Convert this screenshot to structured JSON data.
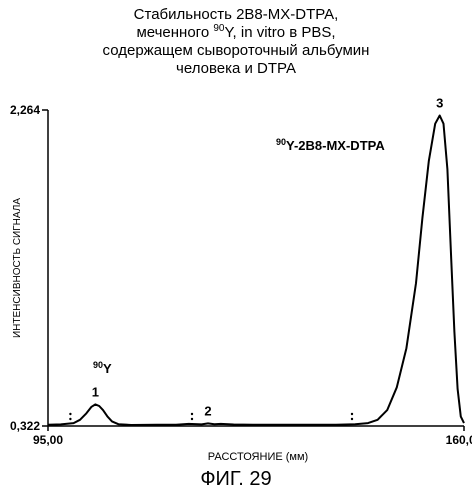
{
  "title": {
    "line1": "Стабильность 2B8-MX-DTPA,",
    "line2_pre": "меченного ",
    "line2_sup": "90",
    "line2_post": "Y, in vitro в PBS,",
    "line3": "содержащем сывороточный альбумин",
    "line4": "человека и DTPA"
  },
  "figure_label": "ФИГ. 29",
  "chart_data": {
    "type": "line",
    "xlabel": "РАССТОЯНИЕ (мм)",
    "ylabel": "ИНТЕНСИВНОСТЬ СИГНАЛА",
    "xlim": [
      95.0,
      160.0
    ],
    "ylim": [
      0.322,
      2.264
    ],
    "x_tick_labels": [
      "95,00",
      "160,00"
    ],
    "y_tick_labels": [
      "0,322",
      "2,264"
    ],
    "x_ticks": [
      95.0,
      160.0
    ],
    "y_ticks": [
      0.322,
      2.264
    ],
    "series": [
      {
        "x": [
          95.0,
          97.0,
          99.0,
          100.0,
          101.0,
          101.8,
          102.4,
          103.0,
          103.6,
          104.3,
          105.0,
          106.0,
          108.0,
          112.0,
          115.0,
          117.0,
          119.0,
          120.0,
          121.0,
          122.0,
          124.0,
          127.0,
          130.0,
          135.0,
          140.0,
          143.0,
          145.0,
          146.5,
          148.0,
          149.5,
          151.0,
          152.5,
          153.5,
          154.5,
          155.5,
          156.2,
          156.8,
          157.4,
          158.0,
          158.5,
          159.0,
          159.5,
          160.0
        ],
        "y": [
          0.33,
          0.332,
          0.34,
          0.36,
          0.4,
          0.44,
          0.455,
          0.445,
          0.42,
          0.38,
          0.35,
          0.333,
          0.328,
          0.33,
          0.33,
          0.335,
          0.332,
          0.338,
          0.333,
          0.335,
          0.331,
          0.33,
          0.33,
          0.33,
          0.33,
          0.333,
          0.34,
          0.36,
          0.42,
          0.56,
          0.8,
          1.2,
          1.6,
          1.95,
          2.18,
          2.23,
          2.18,
          1.9,
          1.35,
          0.9,
          0.55,
          0.38,
          0.34
        ]
      }
    ],
    "annotations": [
      {
        "label": "1",
        "x": 102.4,
        "y": 0.455
      },
      {
        "label": "2",
        "x": 120.0,
        "y": 0.338
      },
      {
        "label": "3",
        "x": 156.2,
        "y": 2.23
      }
    ],
    "peak1_label_sup": "90",
    "peak1_label_main": "Y",
    "peak3_label_sup": "90",
    "peak3_label_main": "Y-2B8-MX-DTPA",
    "baseline_markers": [
      98.5,
      117.5,
      142.5
    ],
    "grid": false
  }
}
